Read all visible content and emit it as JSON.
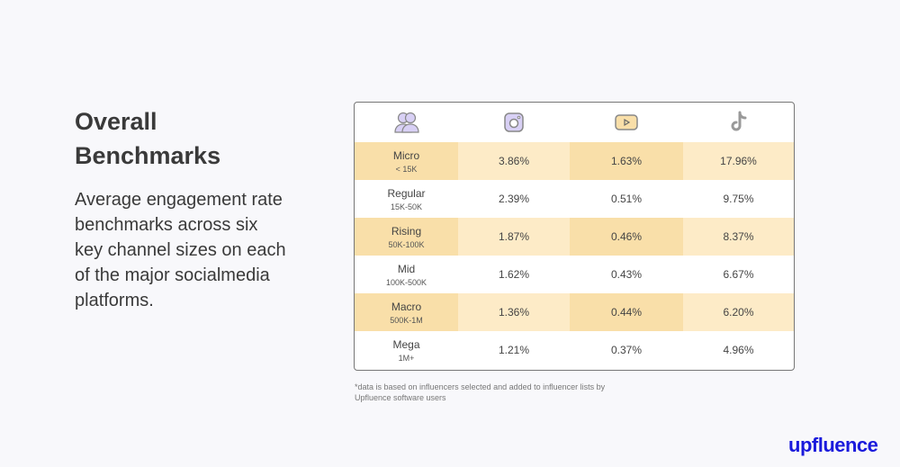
{
  "heading": "Overall Benchmarks",
  "description": "Average engagement rate benchmarks across six key channel sizes on each of the major socialmedia platforms.",
  "table": {
    "columns": [
      {
        "icon": "people-icon"
      },
      {
        "icon": "instagram-icon"
      },
      {
        "icon": "youtube-icon"
      },
      {
        "icon": "tiktok-icon"
      }
    ],
    "rows": [
      {
        "tier": "Micro",
        "range": "< 15K",
        "instagram": "3.86%",
        "youtube": "1.63%",
        "tiktok": "17.96%"
      },
      {
        "tier": "Regular",
        "range": "15K-50K",
        "instagram": "2.39%",
        "youtube": "0.51%",
        "tiktok": "9.75%"
      },
      {
        "tier": "Rising",
        "range": "50K-100K",
        "instagram": "1.87%",
        "youtube": "0.46%",
        "tiktok": "8.37%"
      },
      {
        "tier": "Mid",
        "range": "100K-500K",
        "instagram": "1.62%",
        "youtube": "0.43%",
        "tiktok": "6.67%"
      },
      {
        "tier": "Macro",
        "range": "500K-1M",
        "instagram": "1.36%",
        "youtube": "0.44%",
        "tiktok": "6.20%"
      },
      {
        "tier": "Mega",
        "range": "1M+",
        "instagram": "1.21%",
        "youtube": "0.37%",
        "tiktok": "4.96%"
      }
    ]
  },
  "footnote": "*data is based on influencers selected and added to influencer lists by Upfluence software users",
  "logo": "upfluence",
  "colors": {
    "highlight_dark": "#f9dfa9",
    "highlight_light": "#fdebc7",
    "brand": "#1a1adc",
    "instagram": "#d8d0f5",
    "youtube": "#f9dfa9"
  }
}
